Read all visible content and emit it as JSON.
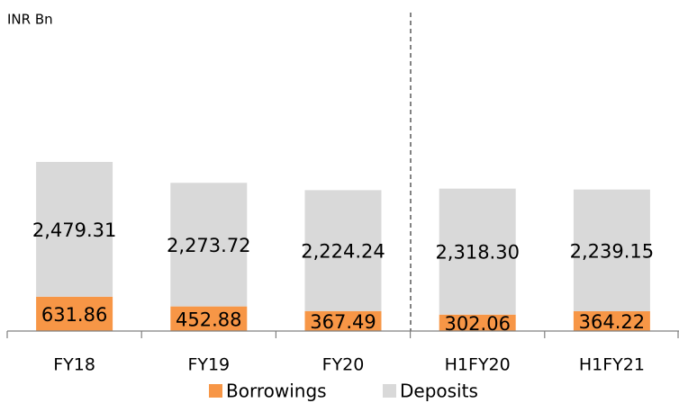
{
  "chart_data": {
    "type": "stacked_bar",
    "unit_label": "INR Bn",
    "categories": [
      "FY18",
      "FY19",
      "FY20",
      "H1FY20",
      "H1FY21"
    ],
    "series": [
      {
        "name": "Borrowings",
        "color": "#f79646",
        "values": [
          631.86,
          452.88,
          367.49,
          302.06,
          364.22
        ]
      },
      {
        "name": "Deposits",
        "color": "#d9d9d9",
        "values": [
          2479.31,
          2273.72,
          2224.24,
          2318.3,
          2239.15
        ],
        "value_labels": [
          "2,479.31",
          "2,273.72",
          "2,224.24",
          "2,318.30",
          "2,239.15"
        ]
      }
    ]
  }
}
